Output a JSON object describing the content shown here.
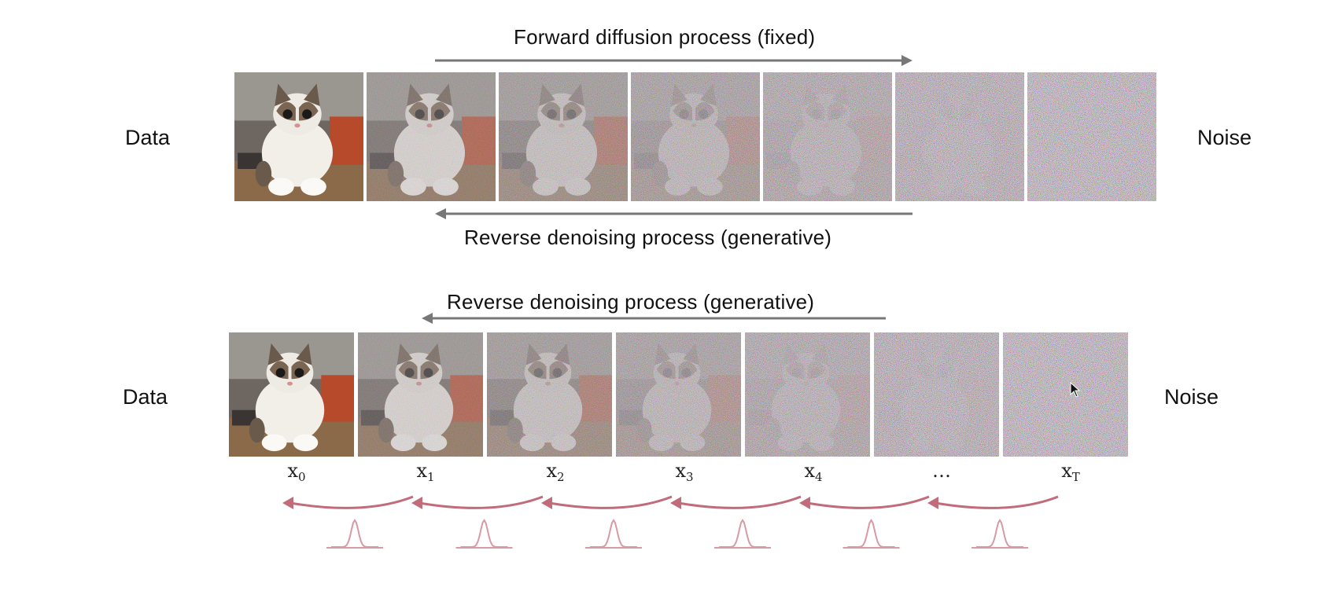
{
  "top_panel": {
    "forward_label": "Forward diffusion process (fixed)",
    "reverse_label": "Reverse denoising process (generative)",
    "data_label": "Data",
    "noise_label": "Noise",
    "noise_levels": [
      0,
      0.25,
      0.45,
      0.62,
      0.78,
      0.9,
      1.0
    ]
  },
  "bottom_panel": {
    "reverse_label": "Reverse denoising process (generative)",
    "data_label": "Data",
    "noise_label": "Noise",
    "noise_levels": [
      0,
      0.25,
      0.45,
      0.62,
      0.78,
      0.9,
      1.0
    ],
    "step_labels": [
      {
        "base": "x",
        "sub": "0"
      },
      {
        "base": "x",
        "sub": "1"
      },
      {
        "base": "x",
        "sub": "2"
      },
      {
        "base": "x",
        "sub": "3"
      },
      {
        "base": "x",
        "sub": "4"
      },
      {
        "base": "…",
        "sub": ""
      },
      {
        "base": "x",
        "sub": "T"
      }
    ]
  },
  "colors": {
    "arrow_gray": "#777777",
    "transition_red": "#c06c7a",
    "gaussian_red": "#d89aa4"
  }
}
